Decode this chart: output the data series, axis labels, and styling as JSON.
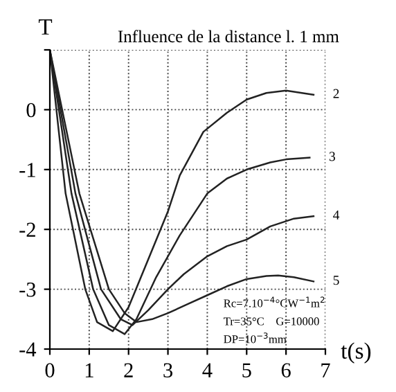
{
  "chart_data": {
    "type": "line",
    "title": "Influence de la distance l. 1 mm",
    "xlabel": "t(s)",
    "ylabel": "T",
    "xlim": [
      0,
      7
    ],
    "ylim": [
      -4,
      1
    ],
    "xticks": [
      0,
      1,
      2,
      3,
      4,
      5,
      6,
      7
    ],
    "yticks": [
      -4,
      -3,
      -2,
      -1,
      0,
      {
        "value": 1,
        "label": null
      }
    ],
    "grid": true,
    "line_style": "solid",
    "marker": "none",
    "legend": false,
    "annotations": [
      "Rc=7.10$^{−4}$°CW$^{−1}$m$^{2}$",
      "Tr=35°C",
      "G=10000",
      "DP=10$^{−3}$mm"
    ],
    "series": [
      {
        "name": "2",
        "color": "#222222",
        "x": [
          0,
          0.4,
          0.9,
          1.2,
          1.6,
          2.0,
          2.5,
          3.0,
          3.3,
          3.9,
          4.5,
          5.0,
          5.5,
          6.0,
          6.7
        ],
        "values": [
          1,
          -1.4,
          -3,
          -3.55,
          -3.7,
          -3.3,
          -2.5,
          -1.7,
          -1.1,
          -0.37,
          -0.05,
          0.17,
          0.28,
          0.32,
          0.25
        ]
      },
      {
        "name": "3",
        "color": "#222222",
        "x": [
          0,
          0.55,
          1.1,
          1.5,
          1.9,
          2.2,
          2.7,
          3.3,
          4.0,
          4.5,
          5.0,
          5.6,
          6.0,
          6.6
        ],
        "values": [
          1,
          -1.4,
          -3.0,
          -3.6,
          -3.75,
          -3.5,
          -2.8,
          -2.1,
          -1.4,
          -1.15,
          -1.0,
          -0.88,
          -0.83,
          -0.8
        ]
      },
      {
        "name": "4",
        "color": "#222222",
        "x": [
          0,
          0.65,
          1.3,
          1.8,
          2.1,
          2.5,
          3.0,
          3.4,
          4.0,
          4.5,
          5.0,
          5.6,
          6.2,
          6.7
        ],
        "values": [
          1,
          -1.4,
          -3.0,
          -3.5,
          -3.6,
          -3.35,
          -3.0,
          -2.75,
          -2.45,
          -2.28,
          -2.17,
          -1.95,
          -1.82,
          -1.78
        ]
      },
      {
        "name": "5",
        "color": "#222222",
        "x": [
          0,
          0.75,
          1.5,
          1.9,
          2.2,
          2.6,
          3.0,
          3.5,
          4.0,
          4.5,
          5.0,
          5.5,
          5.8,
          6.2,
          6.7
        ],
        "values": [
          1,
          -1.4,
          -3.0,
          -3.4,
          -3.55,
          -3.5,
          -3.4,
          -3.25,
          -3.1,
          -2.95,
          -2.83,
          -2.78,
          -2.77,
          -2.8,
          -2.87
        ]
      }
    ]
  }
}
